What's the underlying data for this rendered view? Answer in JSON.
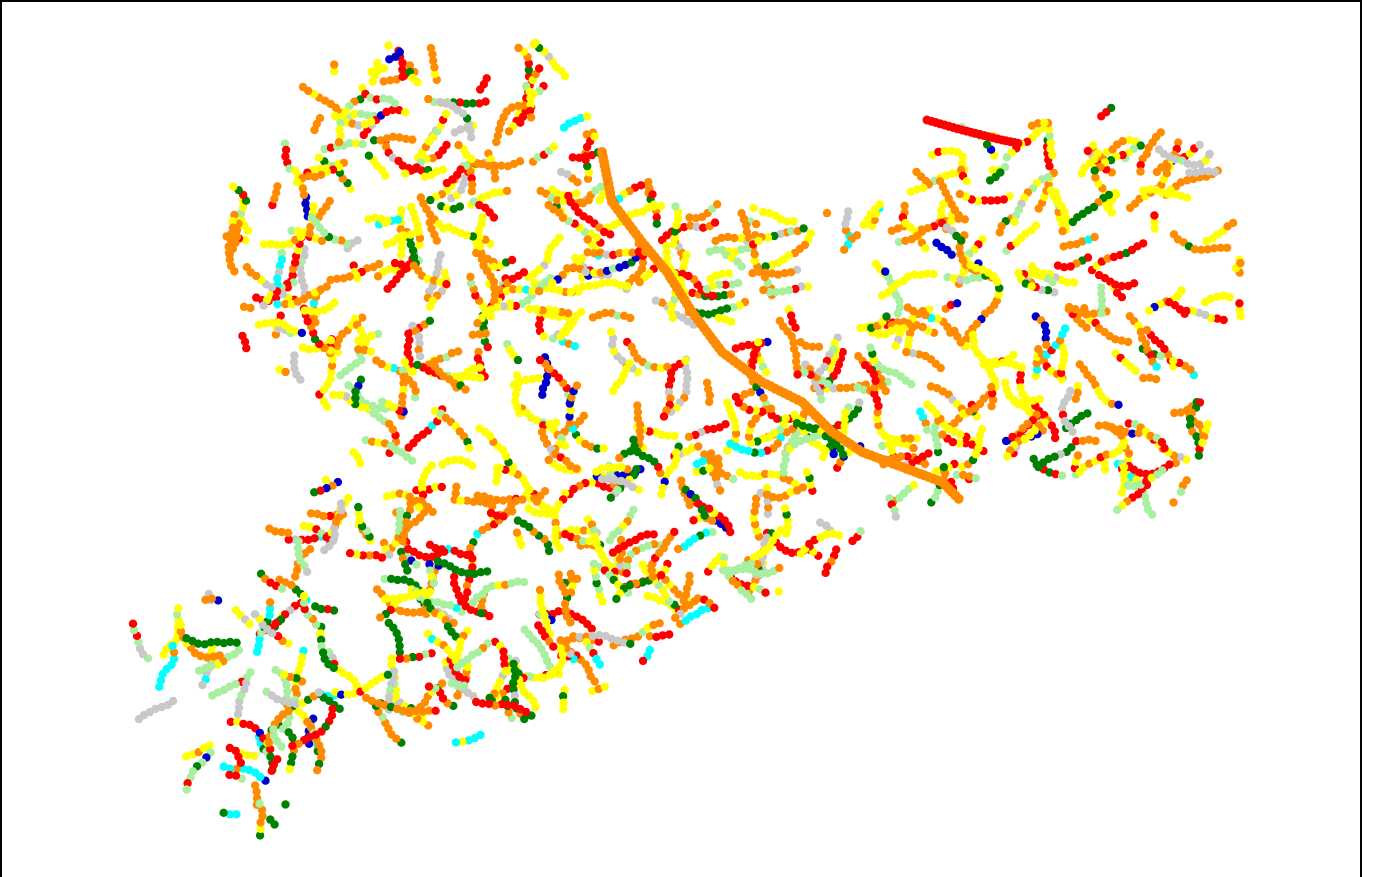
{
  "map": {
    "type": "river-network-dot-map",
    "background": "#ffffff",
    "frame_color": "#000000",
    "legend": null,
    "title": null,
    "symbol": "small-circle",
    "palette": {
      "red": "#ff0000",
      "orange": "#ff8c00",
      "yellow": "#ffff00",
      "light_green": "#a8f0a0",
      "green": "#008000",
      "cyan": "#00ffff",
      "blue": "#0000cc",
      "gray": "#c8c8c8"
    },
    "approx_color_mix": {
      "orange": 0.26,
      "yellow": 0.24,
      "red": 0.14,
      "light_green": 0.12,
      "green": 0.12,
      "cyan": 0.04,
      "gray": 0.06,
      "blue": 0.02
    }
  }
}
